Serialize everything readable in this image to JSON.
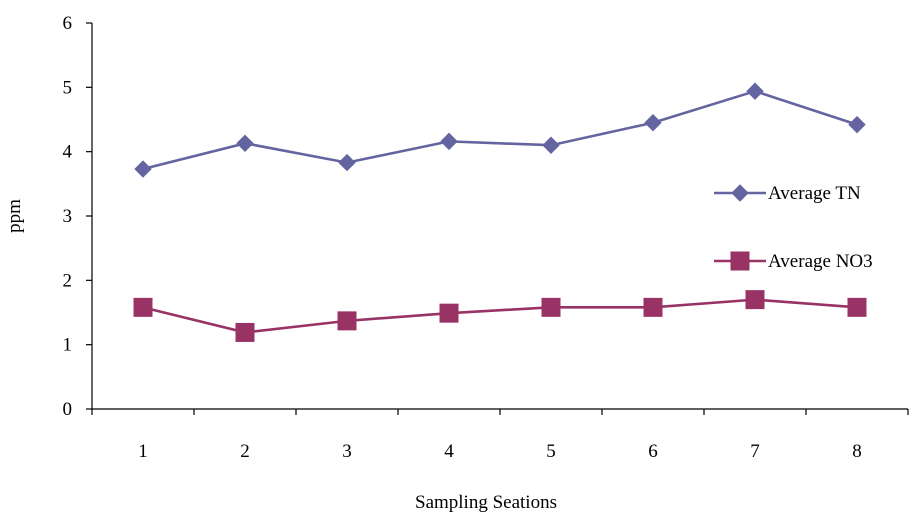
{
  "chart_data": {
    "type": "line",
    "title": "",
    "xlabel": "Sampling Seations",
    "ylabel": "ppm",
    "categories": [
      "1",
      "2",
      "3",
      "4",
      "5",
      "6",
      "7",
      "8"
    ],
    "ylim": [
      0,
      6
    ],
    "yticks": [
      "0",
      "1",
      "2",
      "3",
      "4",
      "5",
      "6"
    ],
    "grid": false,
    "legend_position": "right",
    "series": [
      {
        "name": "Average TN",
        "values": [
          3.73,
          4.13,
          3.83,
          4.16,
          4.1,
          4.45,
          4.94,
          4.42
        ],
        "color": "#6464a0",
        "marker": "diamond"
      },
      {
        "name": "Average NO3",
        "values": [
          1.58,
          1.19,
          1.37,
          1.49,
          1.58,
          1.58,
          1.7,
          1.58
        ],
        "color": "#993366",
        "marker": "square"
      }
    ]
  }
}
